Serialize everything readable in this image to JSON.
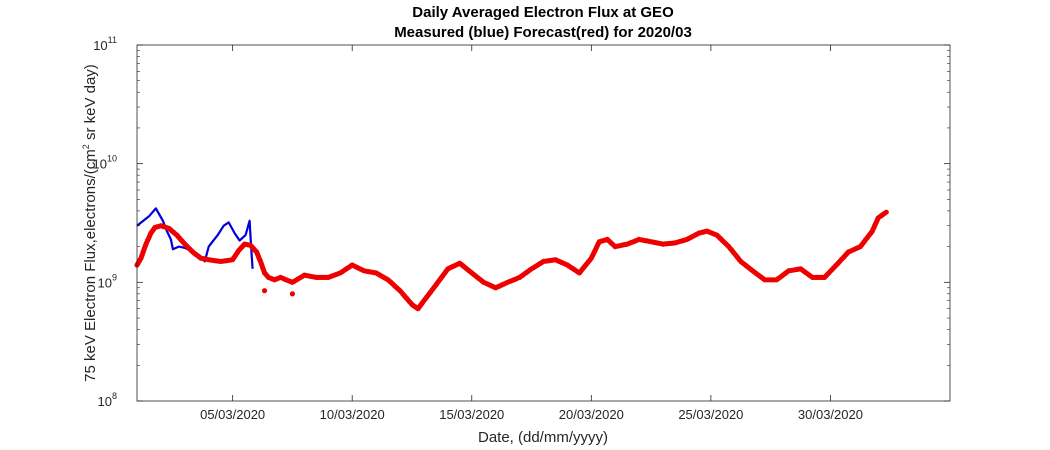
{
  "chart_data": {
    "type": "scatter",
    "title": "Daily Averaged Electron Flux at GEO",
    "subtitle": "Measured (blue) Forecast(red) for 2020/03",
    "xlabel": "Date, (dd/mm/yyyy)",
    "ylabel_main": "75 keV Electron Flux,electrons/(cm",
    "ylabel_sup": "2",
    "ylabel_tail": " sr keV day)",
    "x_range": [
      "2020-03-01",
      "2020-04-04"
    ],
    "y_range": [
      100000000.0,
      100000000000.0
    ],
    "y_scale": "log",
    "grid": false,
    "x_ticks": [
      {
        "date": "2020-03-05",
        "label": "05/03/2020"
      },
      {
        "date": "2020-03-10",
        "label": "10/03/2020"
      },
      {
        "date": "2020-03-15",
        "label": "15/03/2020"
      },
      {
        "date": "2020-03-20",
        "label": "20/03/2020"
      },
      {
        "date": "2020-03-25",
        "label": "25/03/2020"
      },
      {
        "date": "2020-03-30",
        "label": "30/03/2020"
      }
    ],
    "y_ticks": [
      {
        "value": 100000000.0,
        "base": "10",
        "exp": "8"
      },
      {
        "value": 1000000000.0,
        "base": "10",
        "exp": "9"
      },
      {
        "value": 10000000000.0,
        "base": "10",
        "exp": "10"
      },
      {
        "value": 100000000000.0,
        "base": "10",
        "exp": "11"
      }
    ],
    "series": [
      {
        "color": "#0000dd",
        "style": "line",
        "points": [
          [
            "2020-03-01T00:00",
            3000000000.0
          ],
          [
            "2020-03-01T12:00",
            3600000000.0
          ],
          [
            "2020-03-01T19:00",
            4200000000.0
          ],
          [
            "2020-03-02T02:00",
            3300000000.0
          ],
          [
            "2020-03-02T06:00",
            2700000000.0
          ],
          [
            "2020-03-02T10:00",
            2300000000.0
          ],
          [
            "2020-03-02T12:00",
            1900000000.0
          ],
          [
            "2020-03-02T18:00",
            2000000000.0
          ],
          [
            "2020-03-03T00:00",
            1950000000.0
          ],
          [
            "2020-03-03T12:00",
            1750000000.0
          ],
          [
            "2020-03-03T20:00",
            1500000000.0
          ],
          [
            "2020-03-04T00:00",
            2000000000.0
          ],
          [
            "2020-03-04T09:00",
            2500000000.0
          ],
          [
            "2020-03-04T15:00",
            3000000000.0
          ],
          [
            "2020-03-04T20:00",
            3200000000.0
          ],
          [
            "2020-03-05T02:00",
            2600000000.0
          ],
          [
            "2020-03-05T07:00",
            2250000000.0
          ],
          [
            "2020-03-05T13:00",
            2500000000.0
          ],
          [
            "2020-03-05T17:00",
            3300000000.0
          ],
          [
            "2020-03-05T18:30",
            2000000000.0
          ],
          [
            "2020-03-05T20:00",
            1300000000.0
          ]
        ]
      },
      {
        "color": "#ee0000",
        "style": "dots",
        "points": [
          [
            "2020-03-01T00:00",
            1400000000.0
          ],
          [
            "2020-03-01T04:00",
            1600000000.0
          ],
          [
            "2020-03-01T09:00",
            2100000000.0
          ],
          [
            "2020-03-01T14:00",
            2600000000.0
          ],
          [
            "2020-03-01T18:00",
            2900000000.0
          ],
          [
            "2020-03-02T00:00",
            3000000000.0
          ],
          [
            "2020-03-02T08:00",
            2850000000.0
          ],
          [
            "2020-03-02T16:00",
            2500000000.0
          ],
          [
            "2020-03-03T00:00",
            2100000000.0
          ],
          [
            "2020-03-03T08:00",
            1800000000.0
          ],
          [
            "2020-03-03T16:00",
            1600000000.0
          ],
          [
            "2020-03-04T00:00",
            1550000000.0
          ],
          [
            "2020-03-04T12:00",
            1500000000.0
          ],
          [
            "2020-03-05T00:00",
            1550000000.0
          ],
          [
            "2020-03-05T06:00",
            1850000000.0
          ],
          [
            "2020-03-05T12:00",
            2100000000.0
          ],
          [
            "2020-03-05T18:00",
            2050000000.0
          ],
          [
            "2020-03-06T00:00",
            1800000000.0
          ],
          [
            "2020-03-06T04:00",
            1500000000.0
          ],
          [
            "2020-03-06T08:00",
            1200000000.0
          ],
          [
            "2020-03-06T12:00",
            1100000000.0
          ],
          [
            "2020-03-06T18:00",
            1050000000.0
          ],
          [
            "2020-03-07T00:00",
            1100000000.0
          ],
          [
            "2020-03-07T12:00",
            1000000000.0
          ],
          [
            "2020-03-08T00:00",
            1150000000.0
          ],
          [
            "2020-03-08T12:00",
            1100000000.0
          ],
          [
            "2020-03-09T00:00",
            1100000000.0
          ],
          [
            "2020-03-09T12:00",
            1200000000.0
          ],
          [
            "2020-03-10T00:00",
            1400000000.0
          ],
          [
            "2020-03-10T12:00",
            1250000000.0
          ],
          [
            "2020-03-11T00:00",
            1200000000.0
          ],
          [
            "2020-03-11T12:00",
            1050000000.0
          ],
          [
            "2020-03-12T00:00",
            850000000.0
          ],
          [
            "2020-03-12T12:00",
            650000000.0
          ],
          [
            "2020-03-12T18:00",
            600000000.0
          ],
          [
            "2020-03-13T00:00",
            700000000.0
          ],
          [
            "2020-03-13T12:00",
            950000000.0
          ],
          [
            "2020-03-14T00:00",
            1300000000.0
          ],
          [
            "2020-03-14T12:00",
            1450000000.0
          ],
          [
            "2020-03-15T00:00",
            1200000000.0
          ],
          [
            "2020-03-15T12:00",
            1000000000.0
          ],
          [
            "2020-03-16T00:00",
            900000000.0
          ],
          [
            "2020-03-16T12:00",
            1000000000.0
          ],
          [
            "2020-03-17T00:00",
            1100000000.0
          ],
          [
            "2020-03-17T12:00",
            1300000000.0
          ],
          [
            "2020-03-18T00:00",
            1500000000.0
          ],
          [
            "2020-03-18T12:00",
            1550000000.0
          ],
          [
            "2020-03-19T00:00",
            1400000000.0
          ],
          [
            "2020-03-19T12:00",
            1200000000.0
          ],
          [
            "2020-03-20T00:00",
            1600000000.0
          ],
          [
            "2020-03-20T08:00",
            2200000000.0
          ],
          [
            "2020-03-20T16:00",
            2300000000.0
          ],
          [
            "2020-03-21T00:00",
            2000000000.0
          ],
          [
            "2020-03-21T12:00",
            2100000000.0
          ],
          [
            "2020-03-22T00:00",
            2300000000.0
          ],
          [
            "2020-03-22T12:00",
            2200000000.0
          ],
          [
            "2020-03-23T00:00",
            2100000000.0
          ],
          [
            "2020-03-23T12:00",
            2150000000.0
          ],
          [
            "2020-03-24T00:00",
            2300000000.0
          ],
          [
            "2020-03-24T12:00",
            2600000000.0
          ],
          [
            "2020-03-24T20:00",
            2700000000.0
          ],
          [
            "2020-03-25T06:00",
            2500000000.0
          ],
          [
            "2020-03-25T18:00",
            2000000000.0
          ],
          [
            "2020-03-26T06:00",
            1500000000.0
          ],
          [
            "2020-03-26T18:00",
            1250000000.0
          ],
          [
            "2020-03-27T06:00",
            1050000000.0
          ],
          [
            "2020-03-27T18:00",
            1050000000.0
          ],
          [
            "2020-03-28T06:00",
            1250000000.0
          ],
          [
            "2020-03-28T18:00",
            1300000000.0
          ],
          [
            "2020-03-29T06:00",
            1100000000.0
          ],
          [
            "2020-03-29T18:00",
            1100000000.0
          ],
          [
            "2020-03-30T06:00",
            1400000000.0
          ],
          [
            "2020-03-30T18:00",
            1800000000.0
          ],
          [
            "2020-03-31T06:00",
            2000000000.0
          ],
          [
            "2020-03-31T18:00",
            2700000000.0
          ],
          [
            "2020-04-01T00:00",
            3500000000.0
          ],
          [
            "2020-04-01T08:00",
            3900000000.0
          ]
        ],
        "extra_points": [
          [
            "2020-03-06T08:00",
            850000000.0
          ],
          [
            "2020-03-07T12:00",
            800000000.0
          ]
        ]
      }
    ]
  }
}
